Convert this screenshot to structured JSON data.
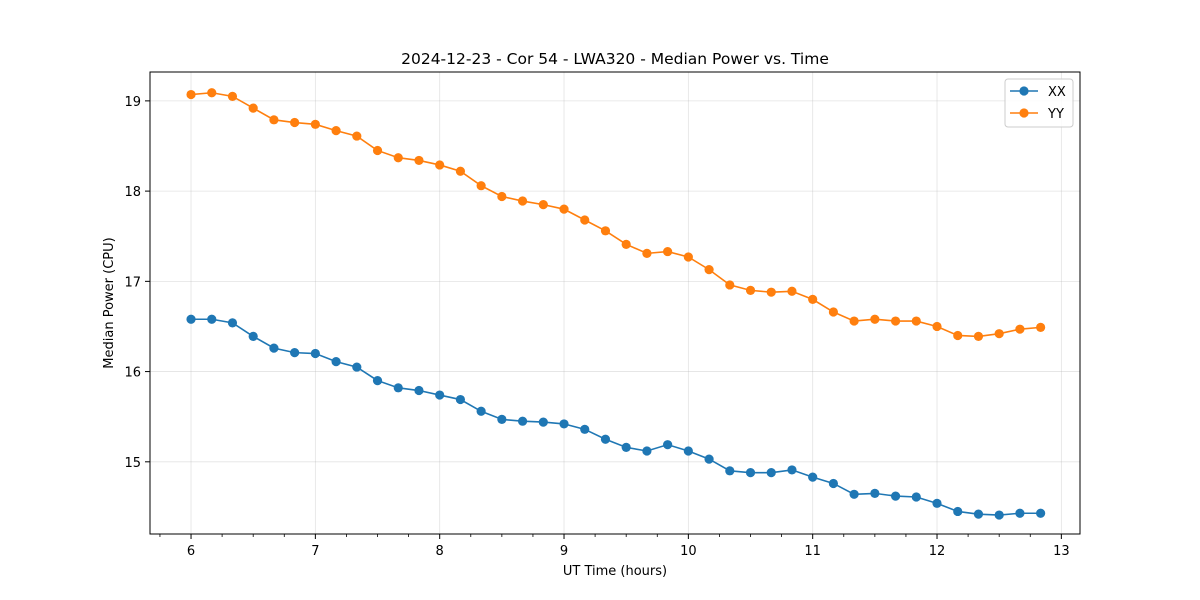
{
  "chart_data": {
    "type": "line",
    "title": "2024-12-23 - Cor 54 - LWA320 - Median Power vs. Time",
    "xlabel": "UT Time (hours)",
    "ylabel": "Median Power (CPU)",
    "xlim": [
      5.67,
      13.15
    ],
    "ylim": [
      14.2,
      19.32
    ],
    "xticks": [
      6,
      7,
      8,
      9,
      10,
      11,
      12,
      13
    ],
    "xtick_labels": [
      "6",
      "7",
      "8",
      "9",
      "10",
      "11",
      "12",
      "13"
    ],
    "yticks": [
      15,
      16,
      17,
      18,
      19
    ],
    "ytick_labels": [
      "15",
      "16",
      "17",
      "18",
      "19"
    ],
    "grid": true,
    "legend_position": "top-right",
    "x": [
      6.0,
      6.1667,
      6.3333,
      6.5,
      6.6667,
      6.8333,
      7.0,
      7.1667,
      7.3333,
      7.5,
      7.6667,
      7.8333,
      8.0,
      8.1667,
      8.3333,
      8.5,
      8.6667,
      8.8333,
      9.0,
      9.1667,
      9.3333,
      9.5,
      9.6667,
      9.8333,
      10.0,
      10.1667,
      10.3333,
      10.5,
      10.6667,
      10.8333,
      11.0,
      11.1667,
      11.3333,
      11.5,
      11.6667,
      11.8333,
      12.0,
      12.1667,
      12.3333,
      12.5,
      12.6667,
      12.8333
    ],
    "series": [
      {
        "name": "XX",
        "color": "#1f77b4",
        "values": [
          16.58,
          16.58,
          16.54,
          16.39,
          16.26,
          16.21,
          16.2,
          16.11,
          16.05,
          15.9,
          15.82,
          15.79,
          15.74,
          15.69,
          15.56,
          15.47,
          15.45,
          15.44,
          15.42,
          15.36,
          15.25,
          15.16,
          15.12,
          15.19,
          15.12,
          15.03,
          14.9,
          14.88,
          14.88,
          14.91,
          14.83,
          14.76,
          14.64,
          14.65,
          14.62,
          14.61,
          14.54,
          14.45,
          14.42,
          14.41,
          14.43,
          14.43
        ]
      },
      {
        "name": "YY",
        "color": "#ff7f0e",
        "values": [
          19.07,
          19.09,
          19.05,
          18.92,
          18.79,
          18.76,
          18.74,
          18.67,
          18.61,
          18.45,
          18.37,
          18.34,
          18.29,
          18.22,
          18.06,
          17.94,
          17.89,
          17.85,
          17.8,
          17.68,
          17.56,
          17.41,
          17.31,
          17.33,
          17.27,
          17.13,
          16.96,
          16.9,
          16.88,
          16.89,
          16.8,
          16.66,
          16.56,
          16.58,
          16.56,
          16.56,
          16.5,
          16.4,
          16.39,
          16.42,
          16.47,
          16.49
        ]
      }
    ]
  }
}
